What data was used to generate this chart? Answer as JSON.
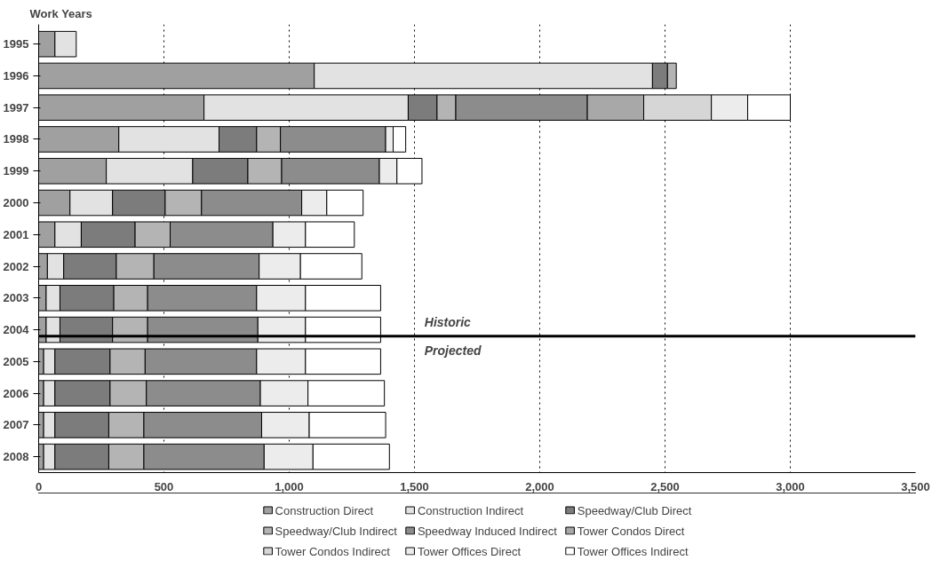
{
  "chart_data": {
    "type": "bar",
    "orientation": "horizontal",
    "stacked": true,
    "ylabel": "Work Years",
    "categories": [
      "1995",
      "1996",
      "1997",
      "1998",
      "1999",
      "2000",
      "2001",
      "2002",
      "2003",
      "2004",
      "2005",
      "2006",
      "2007",
      "2008"
    ],
    "xlim": [
      0,
      3500
    ],
    "xticks": [
      0,
      {
        "value": 500,
        "label": "500"
      },
      {
        "value": 1000,
        "label": "1,000"
      },
      {
        "value": 1500,
        "label": "1,500"
      },
      {
        "value": 2000,
        "label": "2,000"
      },
      {
        "value": 2500,
        "label": "2,500"
      },
      {
        "value": 3000,
        "label": "3,000"
      },
      {
        "value": 3500,
        "label": "3,500"
      }
    ],
    "grid": "x",
    "legend": "bottom",
    "series": [
      {
        "name": "Construction Direct",
        "color": "#a0a0a0",
        "values": [
          65,
          1100,
          660,
          320,
          270,
          125,
          65,
          35,
          30,
          30,
          20,
          20,
          20,
          20
        ]
      },
      {
        "name": "Construction Indirect",
        "color": "#e2e2e2",
        "values": [
          85,
          1350,
          815,
          400,
          345,
          170,
          105,
          65,
          55,
          55,
          45,
          45,
          45,
          45
        ]
      },
      {
        "name": "Speedway/Club Direct",
        "color": "#7c7c7c",
        "values": [
          null,
          60,
          115,
          150,
          220,
          210,
          215,
          210,
          215,
          210,
          220,
          220,
          215,
          215
        ]
      },
      {
        "name": "Speedway/Club Indirect",
        "color": "#b4b4b4",
        "values": [
          null,
          35,
          75,
          95,
          135,
          145,
          140,
          150,
          135,
          140,
          140,
          145,
          140,
          140
        ]
      },
      {
        "name": "Speedway Induced Indirect",
        "color": "#8c8c8c",
        "values": [
          null,
          null,
          525,
          420,
          390,
          400,
          410,
          420,
          435,
          440,
          445,
          455,
          470,
          480
        ]
      },
      {
        "name": "Tower Condos Direct",
        "color": "#a8a8a8",
        "values": [
          null,
          null,
          225,
          null,
          null,
          null,
          null,
          null,
          null,
          null,
          null,
          null,
          null,
          null
        ]
      },
      {
        "name": "Tower Condos Indirect",
        "color": "#d6d6d6",
        "values": [
          null,
          null,
          270,
          null,
          null,
          null,
          null,
          null,
          null,
          null,
          null,
          null,
          null,
          null
        ]
      },
      {
        "name": "Tower Offices Direct",
        "color": "#ececec",
        "values": [
          null,
          null,
          145,
          30,
          70,
          100,
          130,
          165,
          195,
          190,
          195,
          190,
          190,
          195
        ]
      },
      {
        "name": "Tower Offices Indirect",
        "color": "#ffffff",
        "values": [
          null,
          null,
          170,
          50,
          100,
          145,
          195,
          245,
          300,
          300,
          300,
          305,
          305,
          305
        ]
      }
    ],
    "ref_lines": [
      {
        "axis": "y",
        "value": "2004",
        "color": "#000000"
      }
    ],
    "annotations": [
      "Historic",
      "Projected"
    ]
  }
}
